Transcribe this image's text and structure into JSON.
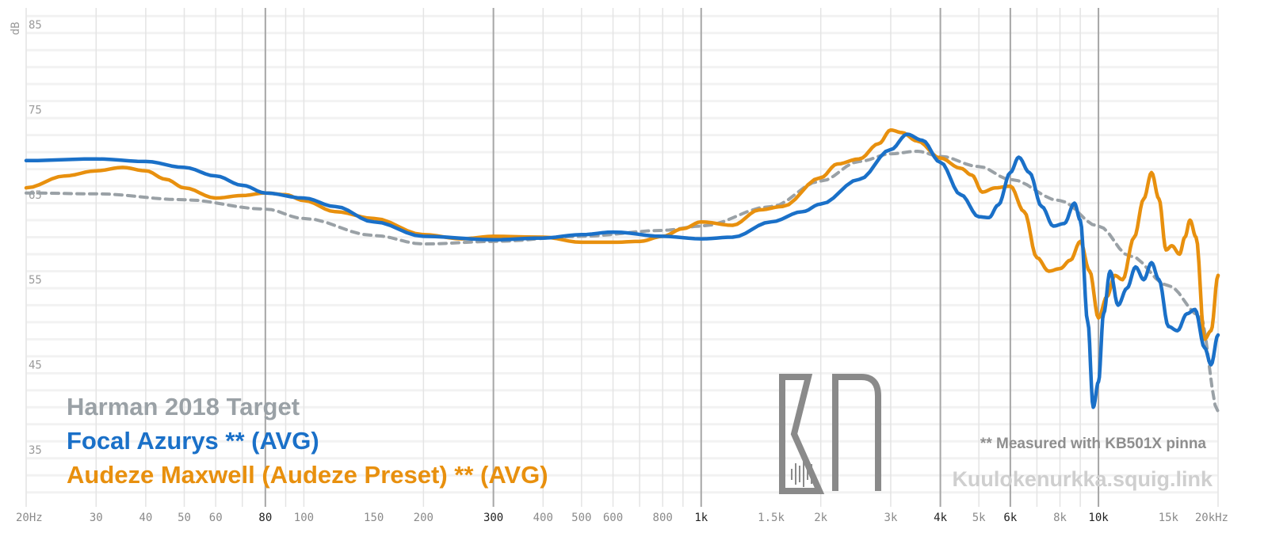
{
  "chart_data": {
    "type": "line",
    "title": "",
    "ylabel": "dB",
    "xlabel": "",
    "xscale": "log",
    "xlim": [
      20,
      20000
    ],
    "ylim": [
      30,
      87
    ],
    "y_ticks": [
      {
        "value": 85,
        "label": "85"
      },
      {
        "value": 75,
        "label": "75"
      },
      {
        "value": 65,
        "label": "65"
      },
      {
        "value": 55,
        "label": "55"
      },
      {
        "value": 45,
        "label": "45"
      },
      {
        "value": 35,
        "label": "35"
      }
    ],
    "x_ticks": [
      {
        "value": 20,
        "label": "20Hz",
        "major": false
      },
      {
        "value": 30,
        "label": "30",
        "major": false
      },
      {
        "value": 40,
        "label": "40",
        "major": false
      },
      {
        "value": 50,
        "label": "50",
        "major": false
      },
      {
        "value": 60,
        "label": "60",
        "major": false
      },
      {
        "value": 80,
        "label": "80",
        "major": true
      },
      {
        "value": 100,
        "label": "100",
        "major": false
      },
      {
        "value": 150,
        "label": "150",
        "major": false
      },
      {
        "value": 200,
        "label": "200",
        "major": false
      },
      {
        "value": 300,
        "label": "300",
        "major": true
      },
      {
        "value": 400,
        "label": "400",
        "major": false
      },
      {
        "value": 500,
        "label": "500",
        "major": false
      },
      {
        "value": 600,
        "label": "600",
        "major": false
      },
      {
        "value": 800,
        "label": "800",
        "major": false
      },
      {
        "value": 1000,
        "label": "1k",
        "major": true
      },
      {
        "value": 1500,
        "label": "1.5k",
        "major": false
      },
      {
        "value": 2000,
        "label": "2k",
        "major": false
      },
      {
        "value": 3000,
        "label": "3k",
        "major": false
      },
      {
        "value": 4000,
        "label": "4k",
        "major": true
      },
      {
        "value": 5000,
        "label": "5k",
        "major": false
      },
      {
        "value": 6000,
        "label": "6k",
        "major": true
      },
      {
        "value": 8000,
        "label": "8k",
        "major": false
      },
      {
        "value": 10000,
        "label": "10k",
        "major": true
      },
      {
        "value": 15000,
        "label": "15k",
        "major": false
      },
      {
        "value": 20000,
        "label": "20kHz",
        "major": false
      }
    ],
    "series": [
      {
        "name": "Harman 2018 Target",
        "color": "#9aa1a6",
        "style": "dashed",
        "points": [
          [
            20,
            65.2
          ],
          [
            30,
            65.1
          ],
          [
            50,
            64.4
          ],
          [
            80,
            63.3
          ],
          [
            100,
            62.2
          ],
          [
            150,
            60.2
          ],
          [
            200,
            59.2
          ],
          [
            300,
            59.5
          ],
          [
            500,
            60.1
          ],
          [
            800,
            60.8
          ],
          [
            1000,
            61.3
          ],
          [
            1500,
            63.6
          ],
          [
            2000,
            66.6
          ],
          [
            2500,
            68.9
          ],
          [
            3000,
            69.8
          ],
          [
            3500,
            70.1
          ],
          [
            4000,
            69.5
          ],
          [
            5000,
            68.3
          ],
          [
            6000,
            66.8
          ],
          [
            8000,
            64.3
          ],
          [
            10000,
            61.3
          ],
          [
            12000,
            57.8
          ],
          [
            15000,
            54.3
          ],
          [
            18000,
            50.8
          ],
          [
            20000,
            39.5
          ]
        ]
      },
      {
        "name": "Focal Azurys ** (AVG)",
        "color": "#1a70c8",
        "style": "solid",
        "points": [
          [
            20,
            69.0
          ],
          [
            30,
            69.2
          ],
          [
            40,
            68.9
          ],
          [
            50,
            68.2
          ],
          [
            60,
            67.2
          ],
          [
            70,
            66.1
          ],
          [
            80,
            65.2
          ],
          [
            100,
            64.6
          ],
          [
            120,
            63.6
          ],
          [
            150,
            61.8
          ],
          [
            200,
            60.1
          ],
          [
            300,
            59.7
          ],
          [
            400,
            59.9
          ],
          [
            500,
            60.3
          ],
          [
            600,
            60.6
          ],
          [
            800,
            60.1
          ],
          [
            1000,
            59.8
          ],
          [
            1200,
            60.0
          ],
          [
            1500,
            61.8
          ],
          [
            1800,
            63.0
          ],
          [
            2000,
            63.9
          ],
          [
            2500,
            66.8
          ],
          [
            3000,
            70.3
          ],
          [
            3300,
            72.1
          ],
          [
            3600,
            71.4
          ],
          [
            4000,
            68.8
          ],
          [
            4500,
            65.0
          ],
          [
            5000,
            62.4
          ],
          [
            5300,
            62.3
          ],
          [
            5600,
            63.8
          ],
          [
            6000,
            67.6
          ],
          [
            6300,
            69.4
          ],
          [
            6700,
            67.6
          ],
          [
            7200,
            63.6
          ],
          [
            7700,
            61.3
          ],
          [
            8200,
            61.6
          ],
          [
            8700,
            64.0
          ],
          [
            9000,
            62.0
          ],
          [
            9400,
            50.0
          ],
          [
            9700,
            40.0
          ],
          [
            10000,
            43.0
          ],
          [
            10300,
            51.0
          ],
          [
            10700,
            56.0
          ],
          [
            11200,
            52.0
          ],
          [
            11800,
            54.0
          ],
          [
            12400,
            56.5
          ],
          [
            13000,
            55.0
          ],
          [
            13600,
            57.0
          ],
          [
            14200,
            55.0
          ],
          [
            15000,
            49.5
          ],
          [
            15800,
            49.0
          ],
          [
            16700,
            51.0
          ],
          [
            17500,
            51.5
          ],
          [
            18500,
            47.0
          ],
          [
            19200,
            45.0
          ],
          [
            20000,
            48.5
          ]
        ]
      },
      {
        "name": "Audeze Maxwell (Audeze Preset) ** (AVG)",
        "color": "#e8900e",
        "style": "solid",
        "points": [
          [
            20,
            65.8
          ],
          [
            25,
            67.2
          ],
          [
            30,
            67.8
          ],
          [
            35,
            68.2
          ],
          [
            40,
            67.8
          ],
          [
            45,
            66.8
          ],
          [
            50,
            65.8
          ],
          [
            60,
            64.6
          ],
          [
            70,
            64.9
          ],
          [
            80,
            65.2
          ],
          [
            90,
            65.0
          ],
          [
            100,
            64.3
          ],
          [
            120,
            63.0
          ],
          [
            150,
            62.2
          ],
          [
            200,
            60.3
          ],
          [
            250,
            59.8
          ],
          [
            300,
            60.1
          ],
          [
            400,
            60.0
          ],
          [
            500,
            59.4
          ],
          [
            600,
            59.4
          ],
          [
            700,
            59.5
          ],
          [
            800,
            60.1
          ],
          [
            900,
            61.0
          ],
          [
            1000,
            61.8
          ],
          [
            1200,
            61.4
          ],
          [
            1400,
            63.2
          ],
          [
            1600,
            63.6
          ],
          [
            2000,
            67.0
          ],
          [
            2200,
            68.6
          ],
          [
            2500,
            69.2
          ],
          [
            2800,
            71.0
          ],
          [
            3000,
            72.6
          ],
          [
            3200,
            72.3
          ],
          [
            3500,
            71.3
          ],
          [
            4000,
            69.3
          ],
          [
            4500,
            68.1
          ],
          [
            4800,
            67.3
          ],
          [
            5100,
            65.3
          ],
          [
            5500,
            65.8
          ],
          [
            6000,
            66.0
          ],
          [
            6500,
            63.0
          ],
          [
            7000,
            57.6
          ],
          [
            7500,
            56.0
          ],
          [
            8000,
            56.3
          ],
          [
            8500,
            57.3
          ],
          [
            9000,
            59.5
          ],
          [
            9500,
            56.0
          ],
          [
            10000,
            50.5
          ],
          [
            10500,
            53.0
          ],
          [
            11000,
            55.5
          ],
          [
            11500,
            55.0
          ],
          [
            12300,
            60.0
          ],
          [
            13000,
            64.5
          ],
          [
            13600,
            67.6
          ],
          [
            14200,
            64.5
          ],
          [
            14800,
            58.5
          ],
          [
            15300,
            59.0
          ],
          [
            16000,
            58.0
          ],
          [
            16500,
            60.0
          ],
          [
            17000,
            62.0
          ],
          [
            17600,
            60.0
          ],
          [
            18500,
            48.0
          ],
          [
            19200,
            49.0
          ],
          [
            20000,
            55.5
          ]
        ]
      }
    ]
  },
  "legend": {
    "items": [
      {
        "label": "Harman 2018 Target",
        "color": "#9aa1a6"
      },
      {
        "label": "Focal Azurys ** (AVG)",
        "color": "#1a70c8"
      },
      {
        "label": "Audeze Maxwell (Audeze Preset) ** (AVG)",
        "color": "#e8900e"
      }
    ]
  },
  "note": "** Measured with KB501X pinna",
  "watermark": {
    "site": "Kuulokenurkka.squig.link",
    "logo": "KN"
  }
}
